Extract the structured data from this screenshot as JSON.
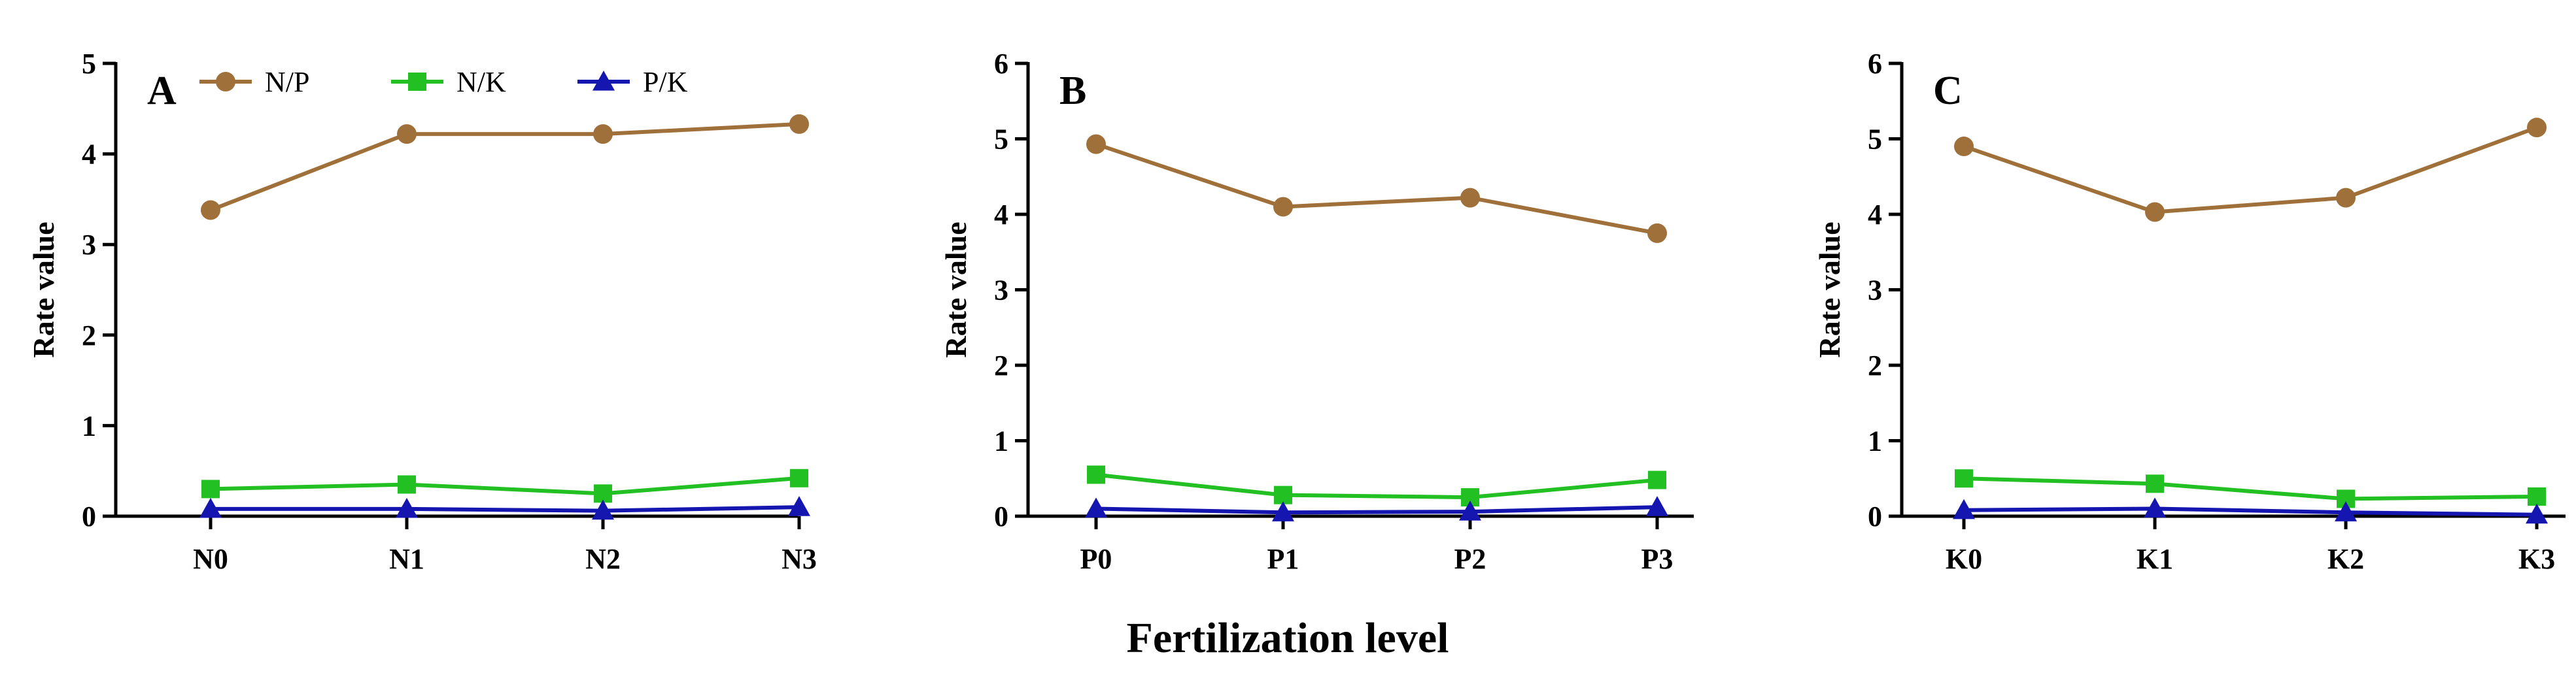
{
  "xlabel": "Fertilization level",
  "colors": {
    "N/P": "#a0703a",
    "N/K": "#22c022",
    "P/K": "#1515b0",
    "axis": "#000000"
  },
  "legend": [
    {
      "name": "N/P",
      "marker": "circle"
    },
    {
      "name": "N/K",
      "marker": "square"
    },
    {
      "name": "P/K",
      "marker": "triangle"
    }
  ],
  "chart_data": [
    {
      "type": "line",
      "panel": "A",
      "ylabel": "Rate value",
      "ylim": [
        0,
        5
      ],
      "yticks": [
        0,
        1,
        2,
        3,
        4,
        5
      ],
      "categories": [
        "N0",
        "N1",
        "N2",
        "N3"
      ],
      "series": [
        {
          "name": "N/P",
          "values": [
            3.38,
            4.22,
            4.22,
            4.33
          ]
        },
        {
          "name": "N/K",
          "values": [
            0.3,
            0.35,
            0.25,
            0.42
          ]
        },
        {
          "name": "P/K",
          "values": [
            0.08,
            0.08,
            0.06,
            0.1
          ]
        }
      ]
    },
    {
      "type": "line",
      "panel": "B",
      "ylabel": "Rate value",
      "ylim": [
        0,
        6
      ],
      "yticks": [
        0,
        1,
        2,
        3,
        4,
        5,
        6
      ],
      "categories": [
        "P0",
        "P1",
        "P2",
        "P3"
      ],
      "series": [
        {
          "name": "N/P",
          "values": [
            4.93,
            4.1,
            4.22,
            3.75
          ]
        },
        {
          "name": "N/K",
          "values": [
            0.55,
            0.28,
            0.25,
            0.48
          ]
        },
        {
          "name": "P/K",
          "values": [
            0.1,
            0.05,
            0.06,
            0.12
          ]
        }
      ]
    },
    {
      "type": "line",
      "panel": "C",
      "ylabel": "Rate value",
      "ylim": [
        0,
        6
      ],
      "yticks": [
        0,
        1,
        2,
        3,
        4,
        5,
        6
      ],
      "categories": [
        "K0",
        "K1",
        "K2",
        "K3"
      ],
      "series": [
        {
          "name": "N/P",
          "values": [
            4.9,
            4.03,
            4.22,
            5.15
          ]
        },
        {
          "name": "N/K",
          "values": [
            0.5,
            0.43,
            0.23,
            0.26
          ]
        },
        {
          "name": "P/K",
          "values": [
            0.08,
            0.1,
            0.05,
            0.02
          ]
        }
      ]
    }
  ]
}
